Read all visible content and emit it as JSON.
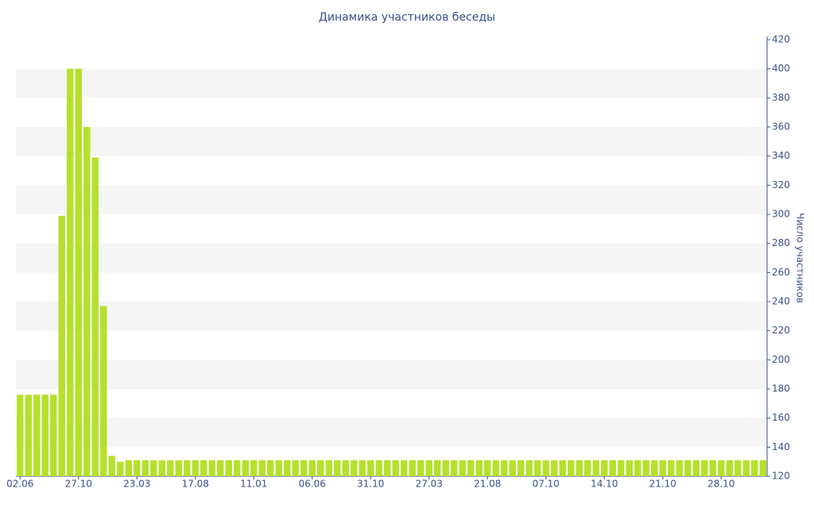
{
  "chart_data": {
    "type": "bar",
    "title": "Динамика участников беседы",
    "y_label": "Число участников",
    "categories": [
      "02.06",
      null,
      null,
      null,
      null,
      null,
      null,
      "27.10",
      null,
      null,
      null,
      null,
      null,
      null,
      "23.03",
      null,
      null,
      null,
      null,
      null,
      null,
      "17.08",
      null,
      null,
      null,
      null,
      null,
      null,
      "11.01",
      null,
      null,
      null,
      null,
      null,
      null,
      "06.06",
      null,
      null,
      null,
      null,
      null,
      null,
      "31.10",
      null,
      null,
      null,
      null,
      null,
      null,
      "27.03",
      null,
      null,
      null,
      null,
      null,
      null,
      "21.08",
      null,
      null,
      null,
      null,
      null,
      null,
      "07.10",
      null,
      null,
      null,
      null,
      null,
      null,
      "14.10",
      null,
      null,
      null,
      null,
      null,
      null,
      "21.10",
      null,
      null,
      null,
      null,
      null,
      null,
      "28.10",
      null,
      null,
      null,
      null,
      null
    ],
    "values": [
      176,
      176,
      176,
      176,
      176,
      299,
      400,
      400,
      360,
      339,
      237,
      134,
      130,
      131,
      131,
      131,
      131,
      131,
      131,
      131,
      131,
      131,
      131,
      131,
      131,
      131,
      131,
      131,
      131,
      131,
      131,
      131,
      131,
      131,
      131,
      131,
      131,
      131,
      131,
      131,
      131,
      131,
      131,
      131,
      131,
      131,
      131,
      131,
      131,
      131,
      131,
      131,
      131,
      131,
      131,
      131,
      131,
      131,
      131,
      131,
      131,
      131,
      131,
      131,
      131,
      131,
      131,
      131,
      131,
      131,
      131,
      131,
      131,
      131,
      131,
      131,
      131,
      131,
      131,
      131,
      131,
      131,
      131,
      131,
      131,
      131,
      131,
      131,
      131,
      131
    ],
    "color": "#b5e02b",
    "ylim": [
      120,
      420
    ],
    "yticks": [
      120,
      140,
      160,
      180,
      200,
      220,
      240,
      260,
      280,
      300,
      320,
      340,
      360,
      380,
      400,
      420
    ],
    "grid": "bands",
    "y_axis_side": "right"
  }
}
